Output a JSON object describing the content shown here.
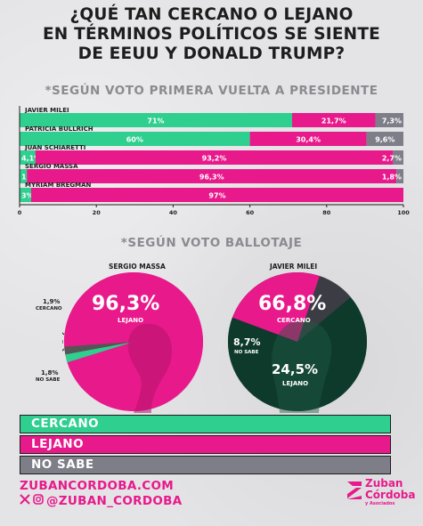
{
  "title_lines": [
    "¿QUÉ TAN CERCANO O LEJANO",
    "EN TÉRMINOS POLÍTICOS SE SIENTE",
    "DE EEUU Y DONALD TRUMP?"
  ],
  "subtitle_first_round": "*SEGÚN VOTO PRIMERA VUELTA A PRESIDENTE",
  "subtitle_ballotage": "*SEGÚN VOTO BALLOTAJE",
  "colors": {
    "cercano": "#2ecf8f",
    "lejano": "#e8198b",
    "no_sabe": "#7d7e88",
    "dark_green": "#0e3a2c",
    "text": "#1d1d1d"
  },
  "chart_data": [
    {
      "type": "bar",
      "orientation": "horizontal",
      "stacked": true,
      "categories": [
        "JAVIER MILEI",
        "PATRICIA BULLRICH",
        "JUAN SCHIARETTI",
        "SERGIO MASSA",
        "MYRIAM BREGMAN"
      ],
      "series": [
        {
          "name": "CERCANO",
          "values": [
            71,
            60,
            4.1,
            1.9,
            3
          ],
          "labels": [
            "71%",
            "60%",
            "4,1%",
            "1,9%",
            "3%"
          ]
        },
        {
          "name": "LEJANO",
          "values": [
            21.7,
            30.4,
            93.2,
            96.3,
            97
          ],
          "labels": [
            "21,7%",
            "30,4%",
            "93,2%",
            "96,3%",
            "97%"
          ]
        },
        {
          "name": "NO SABE",
          "values": [
            7.3,
            9.6,
            2.7,
            1.8,
            0
          ],
          "labels": [
            "7,3%",
            "9,6%",
            "2,7%",
            "1,8%",
            ""
          ]
        }
      ],
      "xlim": [
        0,
        100
      ],
      "xticks": [
        "0",
        "20",
        "40",
        "60",
        "80",
        "100"
      ]
    },
    {
      "type": "pie",
      "title": "SERGIO MASSA",
      "slices": [
        {
          "name": "LEJANO",
          "value": 96.3,
          "label": "96,3%",
          "sublabel": "LEJANO"
        },
        {
          "name": "CERCANO",
          "value": 1.9,
          "label": "1,9%",
          "sublabel": "CERCANO"
        },
        {
          "name": "NO SABE",
          "value": 1.8,
          "label": "1,8%",
          "sublabel": "NO SABE"
        }
      ]
    },
    {
      "type": "pie",
      "title": "JAVIER MILEI",
      "slices": [
        {
          "name": "CERCANO",
          "value": 66.8,
          "label": "66,8%",
          "sublabel": "CERCANO"
        },
        {
          "name": "LEJANO",
          "value": 24.5,
          "label": "24,5%",
          "sublabel": "LEJANO"
        },
        {
          "name": "NO SABE",
          "value": 8.7,
          "label": "8,7%",
          "sublabel": "NO SABE"
        }
      ]
    }
  ],
  "legend": [
    {
      "name": "CERCANO",
      "color": "#2ecf8f"
    },
    {
      "name": "LEJANO",
      "color": "#e8198b"
    },
    {
      "name": "NO SABE",
      "color": "#7d7e88"
    }
  ],
  "footer": {
    "url": "ZUBANCORDOBA.COM",
    "social": "@ZUBAN_CORDOBA",
    "social_icons": [
      "x-icon",
      "instagram-icon"
    ],
    "logo_line1": "Zuban",
    "logo_line2": "Córdoba",
    "logo_line3": "y Asociados"
  }
}
